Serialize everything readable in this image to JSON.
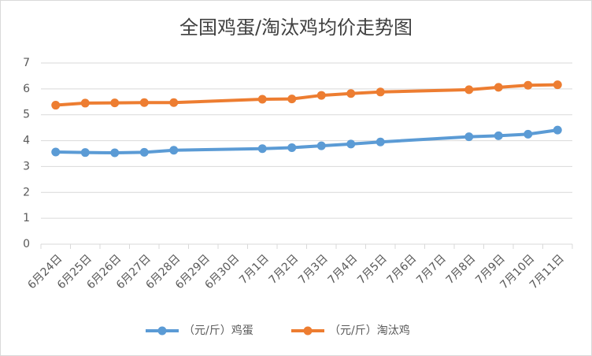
{
  "chart_data": {
    "type": "line",
    "title": "全国鸡蛋/淘汰鸡均价走势图",
    "categories": [
      "6月24日",
      "6月25日",
      "6月26日",
      "6月27日",
      "6月28日",
      "6月29日",
      "6月30日",
      "7月1日",
      "7月2日",
      "7月3日",
      "7月4日",
      "7月5日",
      "7月6日",
      "7月7日",
      "7月8日",
      "7月9日",
      "7月10日",
      "7月11日"
    ],
    "series": [
      {
        "name": "（元/斤）鸡蛋",
        "color": "#5b9bd5",
        "values": [
          3.56,
          3.54,
          3.53,
          3.55,
          3.63,
          null,
          null,
          3.69,
          3.73,
          3.8,
          3.87,
          3.95,
          null,
          null,
          4.15,
          4.19,
          4.25,
          4.41
        ]
      },
      {
        "name": "（元/斤）淘汰鸡",
        "color": "#ed7d31",
        "values": [
          5.37,
          5.45,
          5.46,
          5.47,
          5.47,
          null,
          null,
          5.6,
          5.61,
          5.75,
          5.82,
          5.88,
          null,
          null,
          5.97,
          6.06,
          6.14,
          6.16
        ]
      }
    ],
    "ylim": [
      0,
      7
    ],
    "yticks": [
      0,
      1,
      2,
      3,
      4,
      5,
      6,
      7
    ],
    "grid": true,
    "legend": "bottom"
  }
}
